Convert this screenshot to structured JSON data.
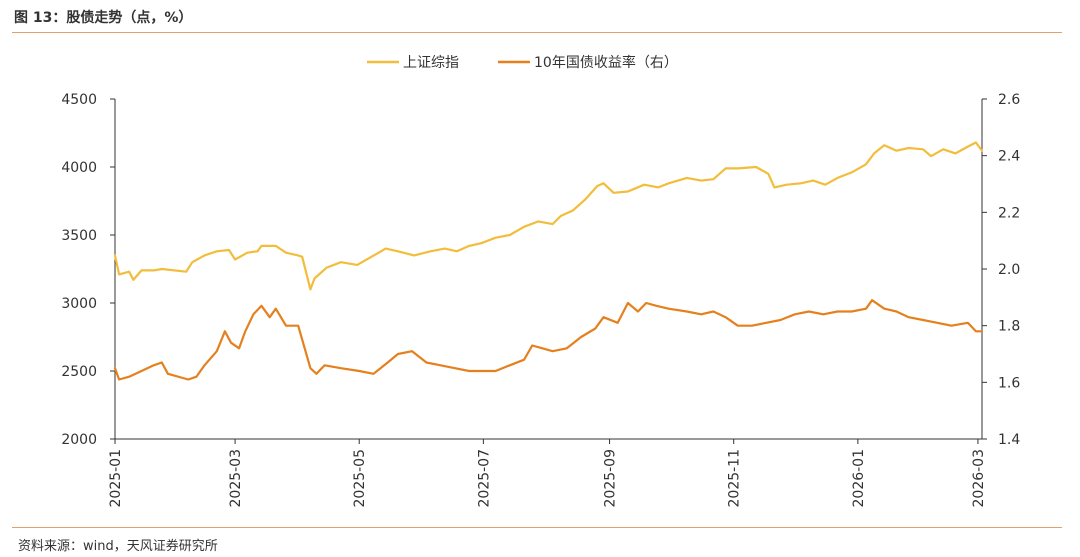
{
  "figure": {
    "title": "图 13：股债走势（点，%）",
    "source": "资料来源：wind，天风证券研究所"
  },
  "colors": {
    "equity": "#f2bd3b",
    "bond": "#e5801f",
    "axis": "#333333",
    "rule": "#e0a36c"
  },
  "chart_data": {
    "type": "line",
    "grid": false,
    "legend_position": "top-center",
    "x": {
      "type": "date",
      "tick_labels": [
        "2025-01",
        "2025-03",
        "2025-05",
        "2025-07",
        "2025-09",
        "2025-11",
        "2026-01",
        "2026-03"
      ],
      "range": [
        "2025-01-01",
        "2026-03-03"
      ]
    },
    "y_left": {
      "ylim": [
        2000,
        4500
      ],
      "ticks": [
        2000,
        2500,
        3000,
        3500,
        4000,
        4500
      ]
    },
    "y_right": {
      "ylim": [
        1.4,
        2.6
      ],
      "ticks": [
        1.4,
        1.6,
        1.8,
        2.0,
        2.2,
        2.4,
        2.6
      ]
    },
    "series": [
      {
        "name": "上证综指",
        "axis": "left",
        "points": [
          [
            "2025-01-01",
            3350
          ],
          [
            "2025-01-03",
            3210
          ],
          [
            "2025-01-08",
            3230
          ],
          [
            "2025-01-10",
            3170
          ],
          [
            "2025-01-14",
            3240
          ],
          [
            "2025-01-20",
            3240
          ],
          [
            "2025-01-24",
            3250
          ],
          [
            "2025-02-05",
            3230
          ],
          [
            "2025-02-08",
            3300
          ],
          [
            "2025-02-14",
            3350
          ],
          [
            "2025-02-20",
            3380
          ],
          [
            "2025-02-26",
            3390
          ],
          [
            "2025-03-01",
            3320
          ],
          [
            "2025-03-07",
            3370
          ],
          [
            "2025-03-12",
            3380
          ],
          [
            "2025-03-14",
            3420
          ],
          [
            "2025-03-21",
            3420
          ],
          [
            "2025-03-26",
            3370
          ],
          [
            "2025-04-01",
            3350
          ],
          [
            "2025-04-03",
            3340
          ],
          [
            "2025-04-07",
            3100
          ],
          [
            "2025-04-09",
            3180
          ],
          [
            "2025-04-15",
            3260
          ],
          [
            "2025-04-22",
            3300
          ],
          [
            "2025-04-30",
            3280
          ],
          [
            "2025-05-07",
            3340
          ],
          [
            "2025-05-14",
            3400
          ],
          [
            "2025-05-20",
            3380
          ],
          [
            "2025-05-28",
            3350
          ],
          [
            "2025-06-05",
            3380
          ],
          [
            "2025-06-12",
            3400
          ],
          [
            "2025-06-18",
            3380
          ],
          [
            "2025-06-24",
            3420
          ],
          [
            "2025-06-30",
            3440
          ],
          [
            "2025-07-07",
            3480
          ],
          [
            "2025-07-14",
            3500
          ],
          [
            "2025-07-21",
            3560
          ],
          [
            "2025-07-28",
            3600
          ],
          [
            "2025-08-04",
            3580
          ],
          [
            "2025-08-08",
            3640
          ],
          [
            "2025-08-14",
            3680
          ],
          [
            "2025-08-20",
            3760
          ],
          [
            "2025-08-26",
            3860
          ],
          [
            "2025-08-29",
            3880
          ],
          [
            "2025-09-03",
            3810
          ],
          [
            "2025-09-10",
            3820
          ],
          [
            "2025-09-18",
            3870
          ],
          [
            "2025-09-25",
            3850
          ],
          [
            "2025-09-30",
            3880
          ],
          [
            "2025-10-09",
            3920
          ],
          [
            "2025-10-16",
            3900
          ],
          [
            "2025-10-22",
            3910
          ],
          [
            "2025-10-28",
            3990
          ],
          [
            "2025-11-03",
            3990
          ],
          [
            "2025-11-12",
            4000
          ],
          [
            "2025-11-18",
            3950
          ],
          [
            "2025-11-21",
            3850
          ],
          [
            "2025-11-27",
            3870
          ],
          [
            "2025-12-04",
            3880
          ],
          [
            "2025-12-10",
            3900
          ],
          [
            "2025-12-16",
            3870
          ],
          [
            "2025-12-22",
            3920
          ],
          [
            "2025-12-29",
            3960
          ],
          [
            "2026-01-05",
            4020
          ],
          [
            "2026-01-09",
            4100
          ],
          [
            "2026-01-14",
            4160
          ],
          [
            "2026-01-20",
            4120
          ],
          [
            "2026-01-26",
            4140
          ],
          [
            "2026-02-02",
            4130
          ],
          [
            "2026-02-06",
            4080
          ],
          [
            "2026-02-12",
            4130
          ],
          [
            "2026-02-18",
            4100
          ],
          [
            "2026-02-24",
            4150
          ],
          [
            "2026-02-28",
            4180
          ],
          [
            "2026-03-03",
            4120
          ]
        ]
      },
      {
        "name": "10年国债收益率（右）",
        "axis": "right",
        "points": [
          [
            "2025-01-01",
            1.65
          ],
          [
            "2025-01-03",
            1.61
          ],
          [
            "2025-01-08",
            1.62
          ],
          [
            "2025-01-14",
            1.64
          ],
          [
            "2025-01-20",
            1.66
          ],
          [
            "2025-01-24",
            1.67
          ],
          [
            "2025-01-27",
            1.63
          ],
          [
            "2025-02-06",
            1.61
          ],
          [
            "2025-02-10",
            1.62
          ],
          [
            "2025-02-14",
            1.66
          ],
          [
            "2025-02-20",
            1.71
          ],
          [
            "2025-02-24",
            1.78
          ],
          [
            "2025-02-27",
            1.74
          ],
          [
            "2025-03-03",
            1.72
          ],
          [
            "2025-03-06",
            1.78
          ],
          [
            "2025-03-10",
            1.84
          ],
          [
            "2025-03-14",
            1.87
          ],
          [
            "2025-03-18",
            1.83
          ],
          [
            "2025-03-21",
            1.86
          ],
          [
            "2025-03-26",
            1.8
          ],
          [
            "2025-04-01",
            1.8
          ],
          [
            "2025-04-07",
            1.65
          ],
          [
            "2025-04-10",
            1.63
          ],
          [
            "2025-04-14",
            1.66
          ],
          [
            "2025-04-22",
            1.65
          ],
          [
            "2025-05-01",
            1.64
          ],
          [
            "2025-05-08",
            1.63
          ],
          [
            "2025-05-15",
            1.67
          ],
          [
            "2025-05-20",
            1.7
          ],
          [
            "2025-05-27",
            1.71
          ],
          [
            "2025-06-03",
            1.67
          ],
          [
            "2025-06-10",
            1.66
          ],
          [
            "2025-06-17",
            1.65
          ],
          [
            "2025-06-24",
            1.64
          ],
          [
            "2025-06-30",
            1.64
          ],
          [
            "2025-07-07",
            1.64
          ],
          [
            "2025-07-14",
            1.66
          ],
          [
            "2025-07-21",
            1.68
          ],
          [
            "2025-07-25",
            1.73
          ],
          [
            "2025-07-30",
            1.72
          ],
          [
            "2025-08-04",
            1.71
          ],
          [
            "2025-08-11",
            1.72
          ],
          [
            "2025-08-18",
            1.76
          ],
          [
            "2025-08-25",
            1.79
          ],
          [
            "2025-08-29",
            1.83
          ],
          [
            "2025-09-05",
            1.81
          ],
          [
            "2025-09-10",
            1.88
          ],
          [
            "2025-09-15",
            1.85
          ],
          [
            "2025-09-19",
            1.88
          ],
          [
            "2025-09-24",
            1.87
          ],
          [
            "2025-09-30",
            1.86
          ],
          [
            "2025-10-09",
            1.85
          ],
          [
            "2025-10-16",
            1.84
          ],
          [
            "2025-10-22",
            1.85
          ],
          [
            "2025-10-28",
            1.83
          ],
          [
            "2025-11-03",
            1.8
          ],
          [
            "2025-11-10",
            1.8
          ],
          [
            "2025-11-17",
            1.81
          ],
          [
            "2025-11-24",
            1.82
          ],
          [
            "2025-12-01",
            1.84
          ],
          [
            "2025-12-08",
            1.85
          ],
          [
            "2025-12-15",
            1.84
          ],
          [
            "2025-12-22",
            1.85
          ],
          [
            "2025-12-29",
            1.85
          ],
          [
            "2026-01-05",
            1.86
          ],
          [
            "2026-01-08",
            1.89
          ],
          [
            "2026-01-14",
            1.86
          ],
          [
            "2026-01-20",
            1.85
          ],
          [
            "2026-01-26",
            1.83
          ],
          [
            "2026-02-02",
            1.82
          ],
          [
            "2026-02-09",
            1.81
          ],
          [
            "2026-02-16",
            1.8
          ],
          [
            "2026-02-24",
            1.81
          ],
          [
            "2026-02-28",
            1.78
          ],
          [
            "2026-03-03",
            1.78
          ]
        ]
      }
    ]
  }
}
